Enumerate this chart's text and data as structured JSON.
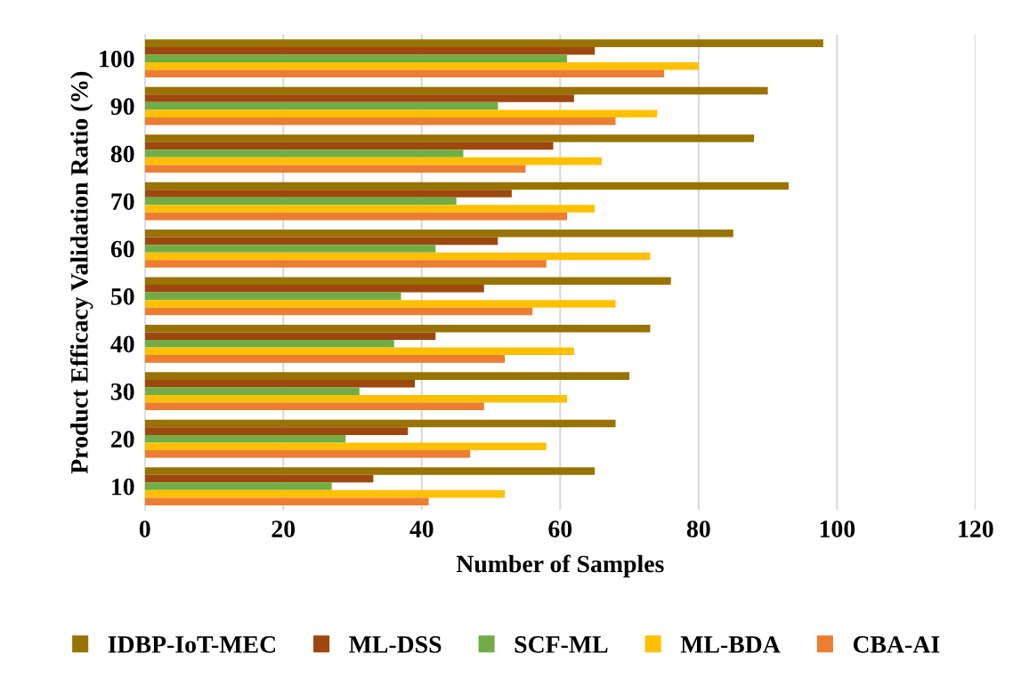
{
  "chart_data": {
    "type": "bar",
    "orientation": "horizontal",
    "xlabel": "Number of Samples",
    "ylabel": "Product Efficacy Validation Ratio (%)",
    "categories": [
      "100",
      "90",
      "80",
      "70",
      "60",
      "50",
      "40",
      "30",
      "20",
      "10"
    ],
    "series": [
      {
        "name": "IDBP-IoT-MEC",
        "color": "#997300",
        "values": [
          98,
          90,
          88,
          93,
          85,
          76,
          73,
          70,
          68,
          65
        ]
      },
      {
        "name": "ML-DSS",
        "color": "#9e480e",
        "values": [
          65,
          62,
          59,
          53,
          51,
          49,
          42,
          39,
          38,
          33
        ]
      },
      {
        "name": "SCF-ML",
        "color": "#70ad47",
        "values": [
          61,
          51,
          46,
          45,
          42,
          37,
          36,
          31,
          29,
          27
        ]
      },
      {
        "name": "ML-BDA",
        "color": "#ffc000",
        "values": [
          80,
          74,
          66,
          65,
          73,
          68,
          62,
          61,
          58,
          52
        ]
      },
      {
        "name": "CBA-AI",
        "color": "#ed7d31",
        "values": [
          75,
          68,
          55,
          61,
          58,
          56,
          52,
          49,
          47,
          41
        ]
      }
    ],
    "xlim": [
      0,
      120
    ],
    "xticks": [
      0,
      20,
      40,
      60,
      80,
      100,
      120
    ],
    "grid": "x",
    "legend": "bottom"
  }
}
